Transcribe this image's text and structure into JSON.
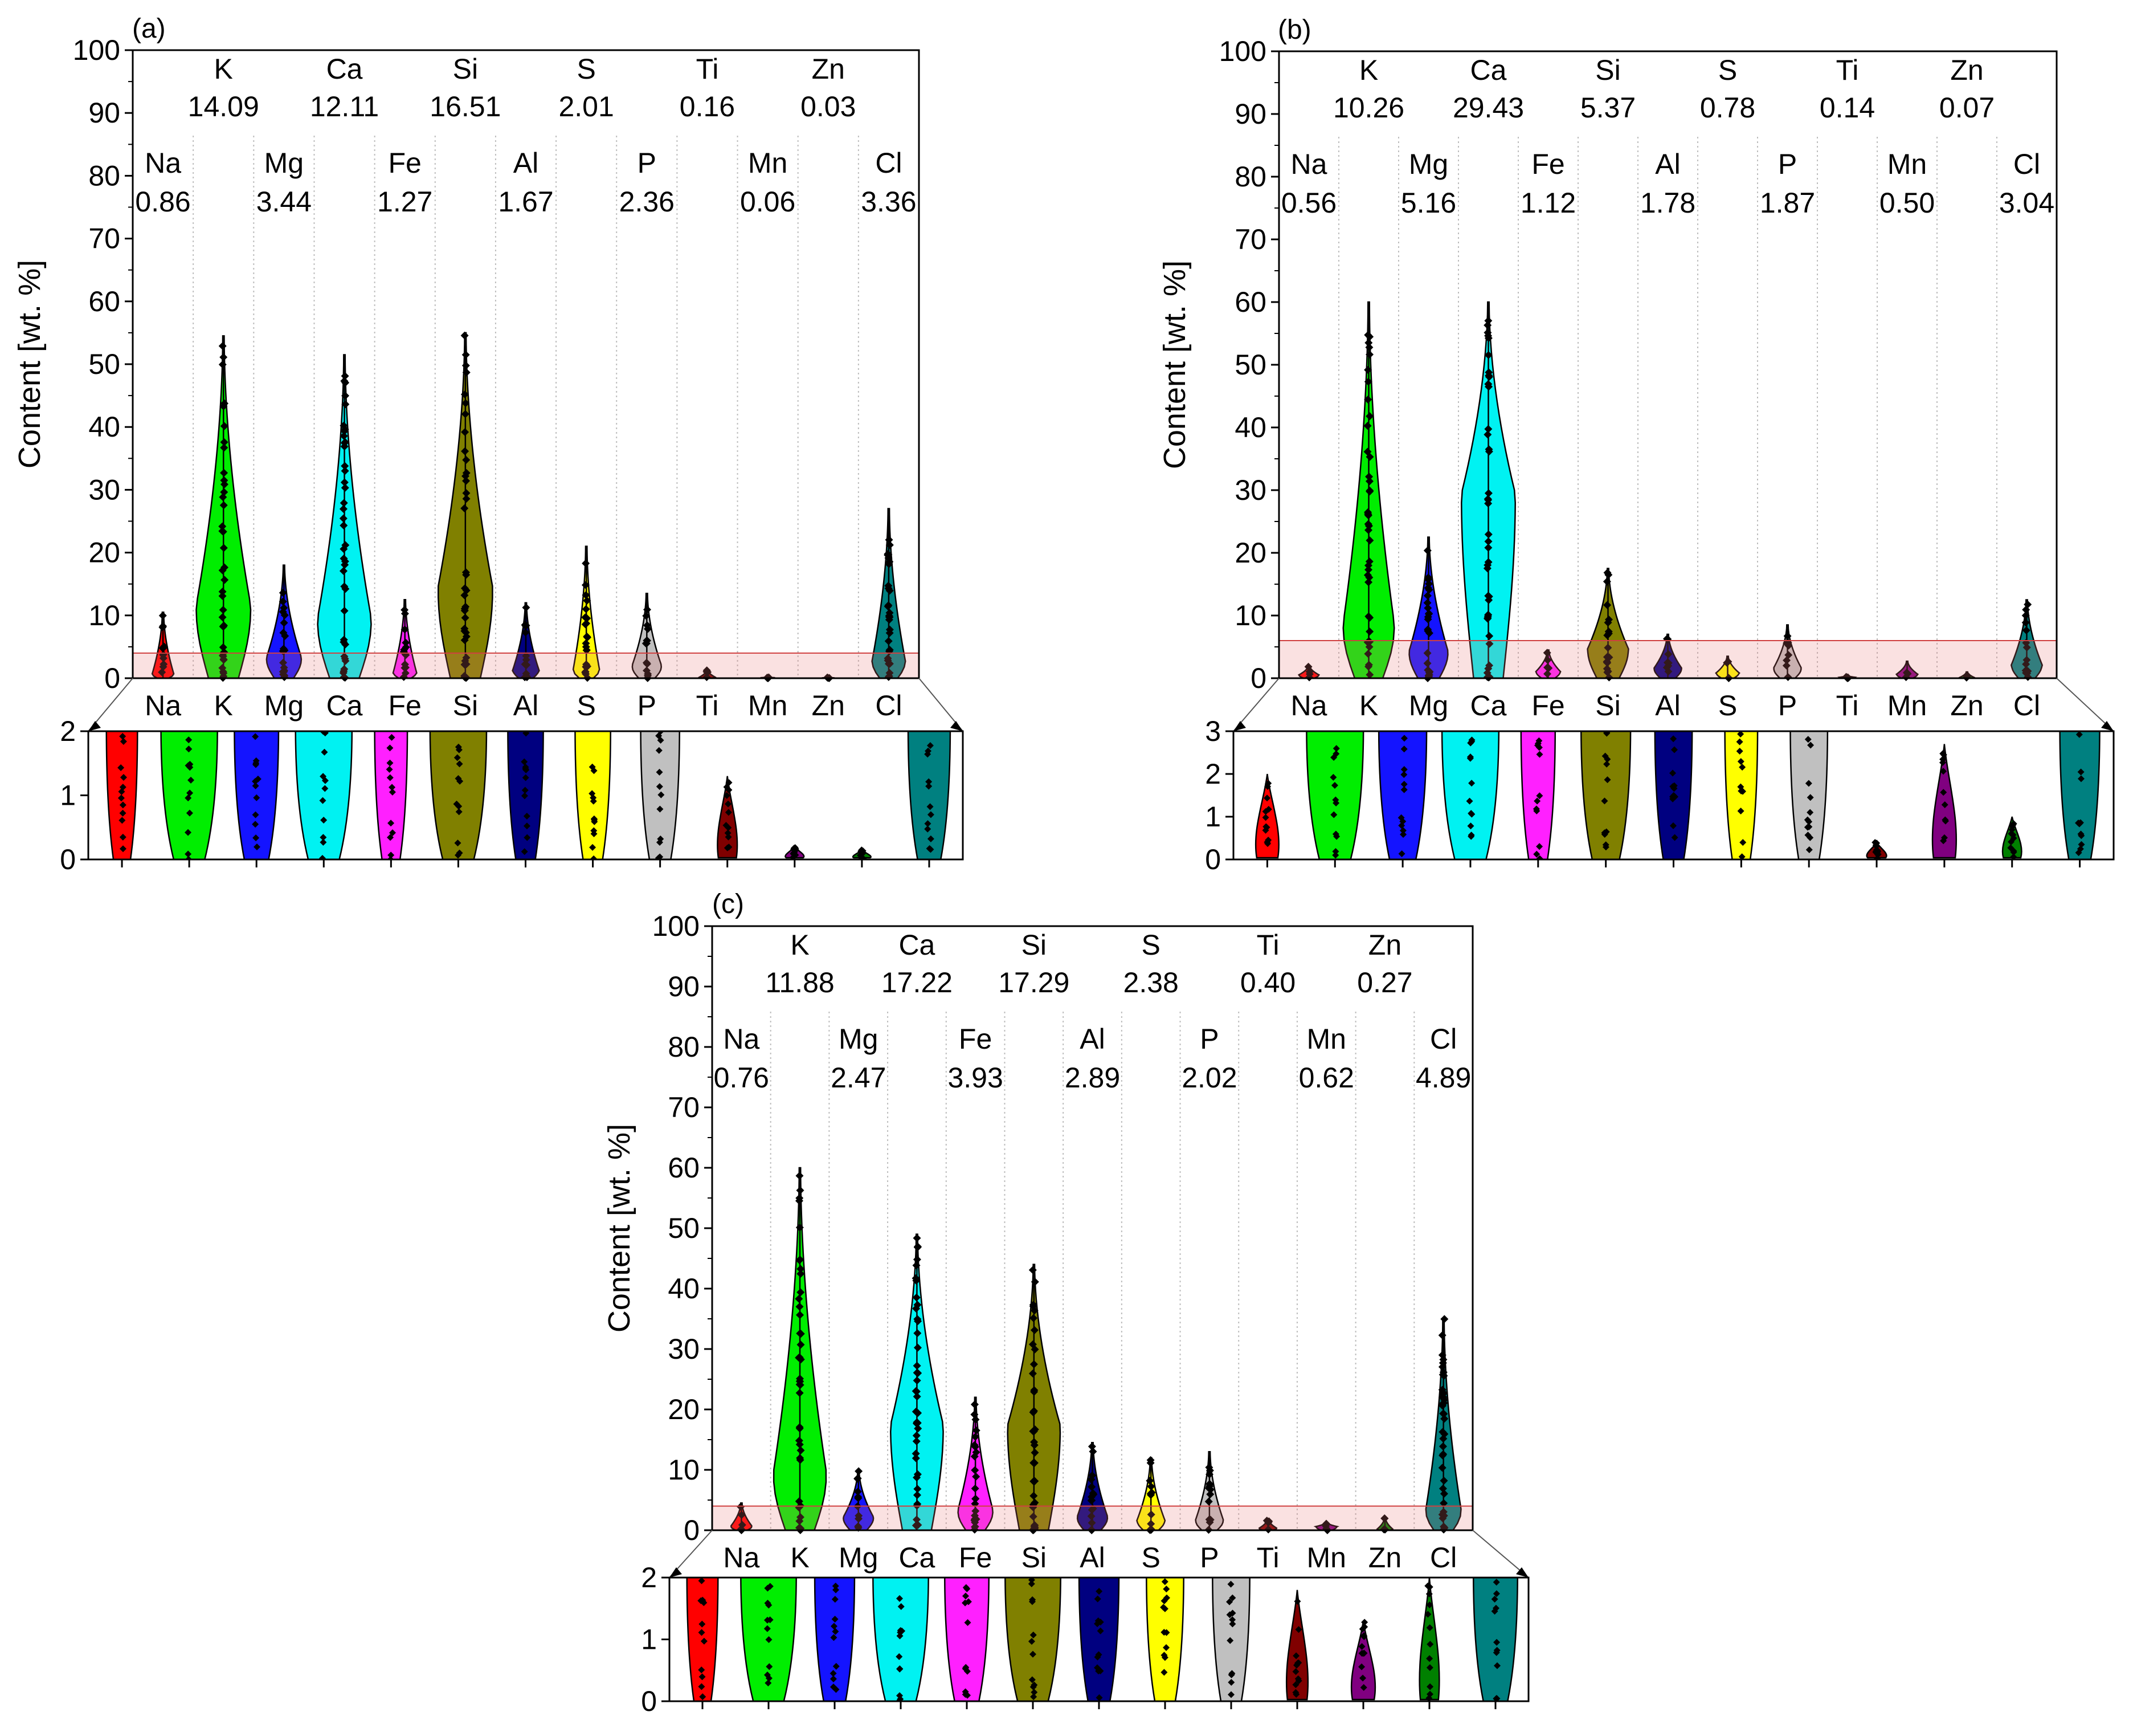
{
  "figure": {
    "ylabel": "Content [wt. %]",
    "colors": {
      "Na": "#ff0000",
      "K": "#00ee00",
      "Mg": "#1414ff",
      "Ca": "#00f2f2",
      "Fe": "#ff20ff",
      "Si": "#808000",
      "Al": "#000080",
      "S": "#ffff00",
      "P": "#c0c0c0",
      "Ti": "#800000",
      "Mn": "#800080",
      "Zn": "#008000",
      "Cl": "#008080"
    }
  },
  "chart_data": [
    {
      "id": "a",
      "panel_label": "(a)",
      "type": "violin",
      "categories": [
        "Na",
        "K",
        "Mg",
        "Ca",
        "Fe",
        "Si",
        "Al",
        "S",
        "P",
        "Ti",
        "Mn",
        "Zn",
        "Cl"
      ],
      "ylabel": "Content [wt. %]",
      "ylim": [
        0,
        100
      ],
      "yticks": [
        "0",
        "10",
        "20",
        "30",
        "40",
        "50",
        "60",
        "70",
        "80",
        "90",
        "100"
      ],
      "inset": {
        "ylim": [
          0,
          2
        ],
        "yticks": [
          "0",
          "1",
          "2"
        ]
      },
      "means_top": [
        {
          "el": "K",
          "val": "14.09"
        },
        {
          "el": "Ca",
          "val": "12.11"
        },
        {
          "el": "Si",
          "val": "16.51"
        },
        {
          "el": "S",
          "val": "2.01"
        },
        {
          "el": "Ti",
          "val": "0.16"
        },
        {
          "el": "Zn",
          "val": "0.03"
        }
      ],
      "means_bottom": [
        {
          "el": "Na",
          "val": "0.86"
        },
        {
          "el": "Mg",
          "val": "3.44"
        },
        {
          "el": "Fe",
          "val": "1.27"
        },
        {
          "el": "Al",
          "val": "1.67"
        },
        {
          "el": "P",
          "val": "2.36"
        },
        {
          "el": "Mn",
          "val": "0.06"
        },
        {
          "el": "Cl",
          "val": "3.36"
        }
      ],
      "max": [
        10.5,
        54.5,
        18,
        51.5,
        12.5,
        55,
        12,
        21,
        13.5,
        1.3,
        0.2,
        0.15,
        27
      ],
      "median": [
        0.6,
        11,
        3,
        9,
        0.8,
        14,
        1.2,
        1.2,
        1.8,
        0.15,
        0.08,
        0.05,
        2.5
      ]
    },
    {
      "id": "b",
      "panel_label": "(b)",
      "type": "violin",
      "categories": [
        "Na",
        "K",
        "Mg",
        "Ca",
        "Fe",
        "Si",
        "Al",
        "S",
        "P",
        "Ti",
        "Mn",
        "Zn",
        "Cl"
      ],
      "ylabel": "Content [wt. %]",
      "ylim": [
        0,
        100
      ],
      "yticks": [
        "0",
        "10",
        "20",
        "30",
        "40",
        "50",
        "60",
        "70",
        "80",
        "90",
        "100"
      ],
      "inset": {
        "ylim": [
          0,
          3
        ],
        "yticks": [
          "0",
          "1",
          "2",
          "3"
        ]
      },
      "means_top": [
        {
          "el": "K",
          "val": "10.26"
        },
        {
          "el": "Ca",
          "val": "29.43"
        },
        {
          "el": "Si",
          "val": "5.37"
        },
        {
          "el": "S",
          "val": "0.78"
        },
        {
          "el": "Ti",
          "val": "0.14"
        },
        {
          "el": "Zn",
          "val": "0.07"
        }
      ],
      "means_bottom": [
        {
          "el": "Na",
          "val": "0.56"
        },
        {
          "el": "Mg",
          "val": "5.16"
        },
        {
          "el": "Fe",
          "val": "1.12"
        },
        {
          "el": "Al",
          "val": "1.78"
        },
        {
          "el": "P",
          "val": "1.87"
        },
        {
          "el": "Mn",
          "val": "0.50"
        },
        {
          "el": "Cl",
          "val": "3.04"
        }
      ],
      "max": [
        2,
        60,
        22.5,
        60,
        4.5,
        17.5,
        7,
        3.5,
        8.5,
        0.4,
        2.7,
        1,
        12.5
      ],
      "median": [
        0.5,
        8,
        4,
        29,
        1,
        4.5,
        1.5,
        0.8,
        1.5,
        0.15,
        0.6,
        0.1,
        2
      ]
    },
    {
      "id": "c",
      "panel_label": "(c)",
      "type": "violin",
      "categories": [
        "Na",
        "K",
        "Mg",
        "Ca",
        "Fe",
        "Si",
        "Al",
        "S",
        "P",
        "Ti",
        "Mn",
        "Zn",
        "Cl"
      ],
      "ylabel": "Content [wt. %]",
      "ylim": [
        0,
        100
      ],
      "yticks": [
        "0",
        "10",
        "20",
        "30",
        "40",
        "50",
        "60",
        "70",
        "80",
        "90",
        "100"
      ],
      "inset": {
        "ylim": [
          0,
          2
        ],
        "yticks": [
          "0",
          "1",
          "2"
        ]
      },
      "means_top": [
        {
          "el": "K",
          "val": "11.88"
        },
        {
          "el": "Ca",
          "val": "17.22"
        },
        {
          "el": "Si",
          "val": "17.29"
        },
        {
          "el": "S",
          "val": "2.38"
        },
        {
          "el": "Ti",
          "val": "0.40"
        },
        {
          "el": "Zn",
          "val": "0.27"
        }
      ],
      "means_bottom": [
        {
          "el": "Na",
          "val": "0.76"
        },
        {
          "el": "Mg",
          "val": "2.47"
        },
        {
          "el": "Fe",
          "val": "3.93"
        },
        {
          "el": "Al",
          "val": "2.89"
        },
        {
          "el": "P",
          "val": "2.02"
        },
        {
          "el": "Mn",
          "val": "0.62"
        },
        {
          "el": "Cl",
          "val": "4.89"
        }
      ],
      "max": [
        4.5,
        60,
        10,
        49,
        22,
        44,
        14.5,
        12,
        13,
        1.8,
        1.3,
        2,
        35
      ],
      "median": [
        0.6,
        9,
        2,
        17,
        3,
        17,
        2,
        1.5,
        1.5,
        0.3,
        0.6,
        0.15,
        3
      ]
    }
  ]
}
